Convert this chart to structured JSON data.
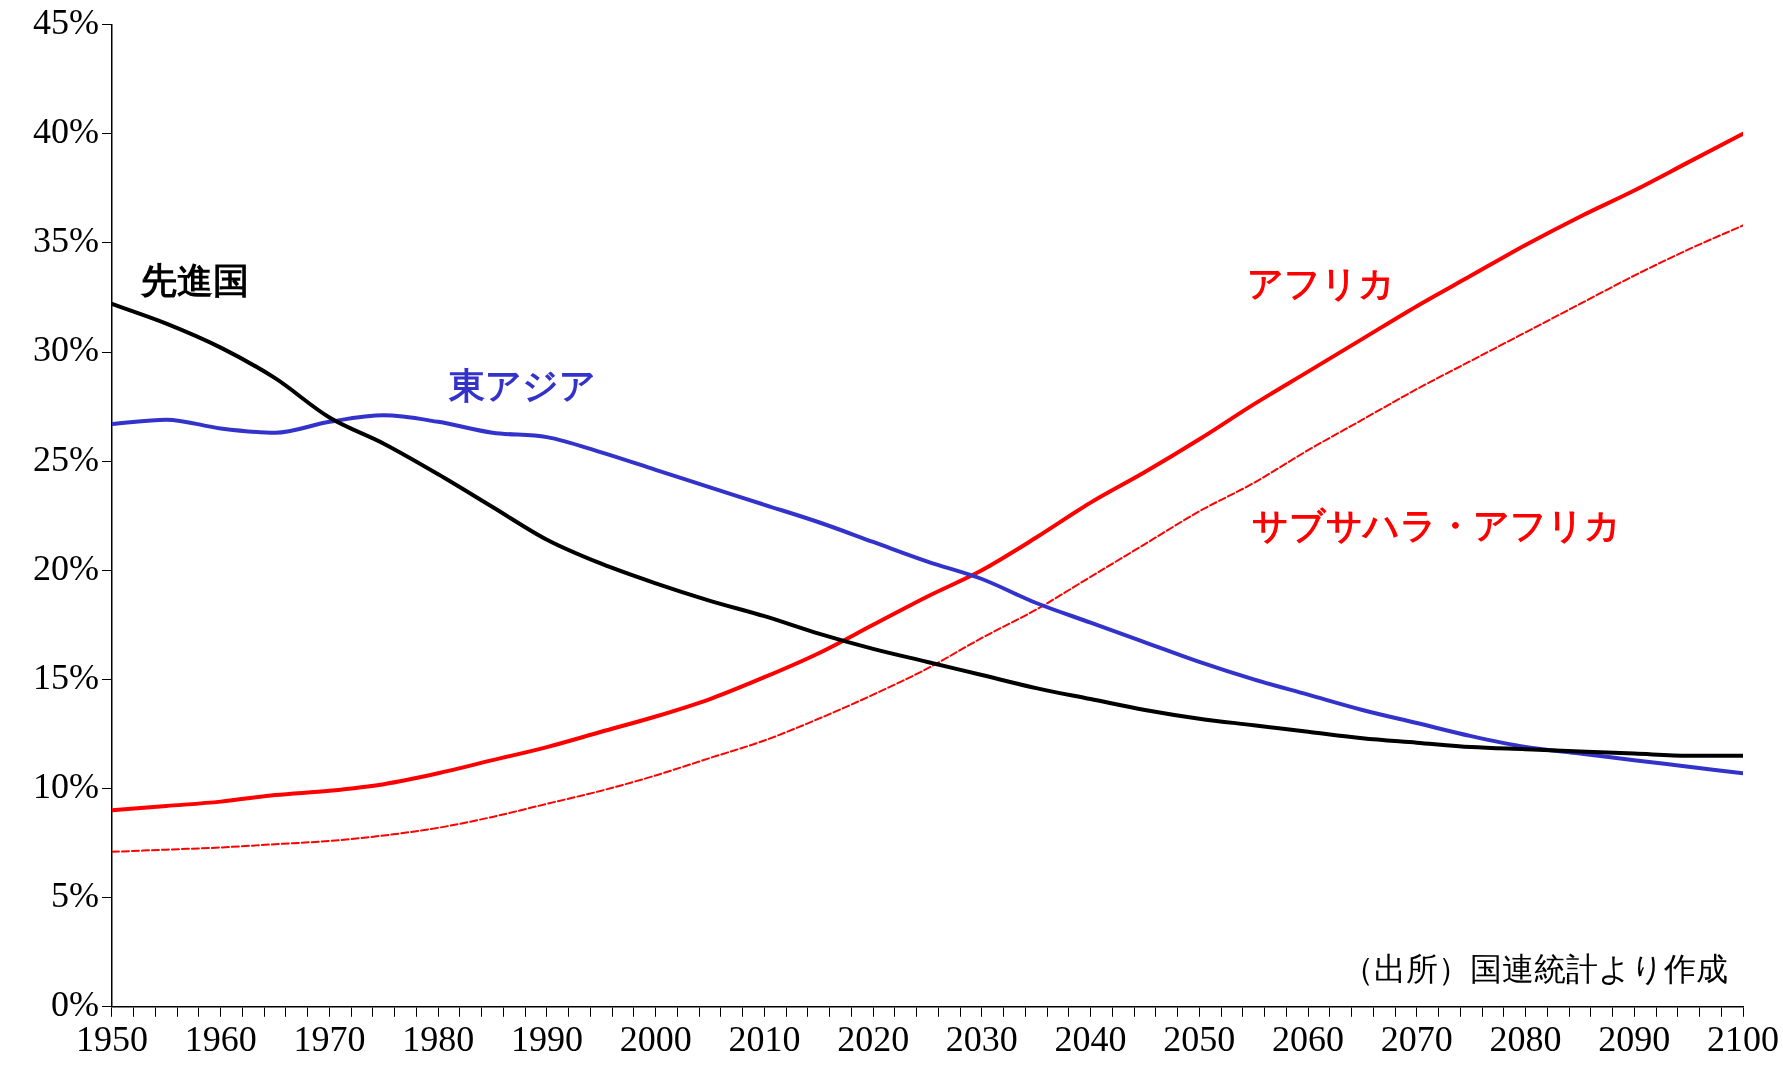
{
  "chart_data": {
    "type": "line",
    "legend": false,
    "grid": false,
    "line_style": "solid",
    "marker": "none",
    "x": [
      1950,
      1955,
      1960,
      1965,
      1970,
      1975,
      1980,
      1985,
      1990,
      1995,
      2000,
      2005,
      2010,
      2015,
      2020,
      2025,
      2030,
      2035,
      2040,
      2045,
      2050,
      2055,
      2060,
      2065,
      2070,
      2075,
      2080,
      2085,
      2090,
      2095,
      2100
    ],
    "xlim": [
      1950,
      2100
    ],
    "xticks": [
      1950,
      {
        "value": 1952,
        "label": null
      },
      {
        "value": 1954,
        "label": null
      },
      {
        "value": 1956,
        "label": null
      },
      {
        "value": 1958,
        "label": null
      },
      1960,
      {
        "value": 1962,
        "label": null
      },
      {
        "value": 1964,
        "label": null
      },
      {
        "value": 1966,
        "label": null
      },
      {
        "value": 1968,
        "label": null
      },
      1970,
      {
        "value": 1972,
        "label": null
      },
      {
        "value": 1974,
        "label": null
      },
      {
        "value": 1976,
        "label": null
      },
      {
        "value": 1978,
        "label": null
      },
      1980,
      {
        "value": 1982,
        "label": null
      },
      {
        "value": 1984,
        "label": null
      },
      {
        "value": 1986,
        "label": null
      },
      {
        "value": 1988,
        "label": null
      },
      1990,
      {
        "value": 1992,
        "label": null
      },
      {
        "value": 1994,
        "label": null
      },
      {
        "value": 1996,
        "label": null
      },
      {
        "value": 1998,
        "label": null
      },
      2000,
      {
        "value": 2002,
        "label": null
      },
      {
        "value": 2004,
        "label": null
      },
      {
        "value": 2006,
        "label": null
      },
      {
        "value": 2008,
        "label": null
      },
      2010,
      {
        "value": 2012,
        "label": null
      },
      {
        "value": 2014,
        "label": null
      },
      {
        "value": 2016,
        "label": null
      },
      {
        "value": 2018,
        "label": null
      },
      2020,
      {
        "value": 2022,
        "label": null
      },
      {
        "value": 2024,
        "label": null
      },
      {
        "value": 2026,
        "label": null
      },
      {
        "value": 2028,
        "label": null
      },
      2030,
      {
        "value": 2032,
        "label": null
      },
      {
        "value": 2034,
        "label": null
      },
      {
        "value": 2036,
        "label": null
      },
      {
        "value": 2038,
        "label": null
      },
      2040,
      {
        "value": 2042,
        "label": null
      },
      {
        "value": 2044,
        "label": null
      },
      {
        "value": 2046,
        "label": null
      },
      {
        "value": 2048,
        "label": null
      },
      2050,
      {
        "value": 2052,
        "label": null
      },
      {
        "value": 2054,
        "label": null
      },
      {
        "value": 2056,
        "label": null
      },
      {
        "value": 2058,
        "label": null
      },
      2060,
      {
        "value": 2062,
        "label": null
      },
      {
        "value": 2064,
        "label": null
      },
      {
        "value": 2066,
        "label": null
      },
      {
        "value": 2068,
        "label": null
      },
      2070,
      {
        "value": 2072,
        "label": null
      },
      {
        "value": 2074,
        "label": null
      },
      {
        "value": 2076,
        "label": null
      },
      {
        "value": 2078,
        "label": null
      },
      2080,
      {
        "value": 2082,
        "label": null
      },
      {
        "value": 2084,
        "label": null
      },
      {
        "value": 2086,
        "label": null
      },
      {
        "value": 2088,
        "label": null
      },
      2090,
      {
        "value": 2092,
        "label": null
      },
      {
        "value": 2094,
        "label": null
      },
      {
        "value": 2096,
        "label": null
      },
      {
        "value": 2098,
        "label": null
      },
      2100
    ],
    "ylim": [
      0,
      45
    ],
    "yticks": [
      {
        "value": 0,
        "label": "0%"
      },
      {
        "value": 5,
        "label": "5%"
      },
      {
        "value": 10,
        "label": "10%"
      },
      {
        "value": 15,
        "label": "15%"
      },
      {
        "value": 20,
        "label": "20%"
      },
      {
        "value": 25,
        "label": "25%"
      },
      {
        "value": 30,
        "label": "30%"
      },
      {
        "value": 35,
        "label": "35%"
      },
      {
        "value": 40,
        "label": "40%"
      },
      {
        "value": 45,
        "label": "45%"
      }
    ],
    "annotations": [
      "（出所）国連統計より作成"
    ],
    "series": [
      {
        "name": "先進国",
        "color": "#000000",
        "values": [
          32.2,
          31.3,
          30.2,
          28.8,
          27.0,
          25.8,
          24.4,
          22.9,
          21.4,
          20.3,
          19.4,
          18.6,
          17.9,
          17.1,
          16.4,
          15.8,
          15.2,
          14.6,
          14.1,
          13.6,
          13.2,
          12.9,
          12.6,
          12.3,
          12.1,
          11.9,
          11.8,
          11.7,
          11.6,
          11.5,
          11.5
        ]
      },
      {
        "name": "東アジア",
        "color": "#3333cc",
        "values": [
          26.7,
          26.9,
          26.5,
          26.3,
          26.8,
          27.1,
          26.8,
          26.3,
          26.1,
          25.4,
          24.6,
          23.8,
          23.0,
          22.2,
          21.3,
          20.4,
          19.6,
          18.5,
          17.6,
          16.7,
          15.8,
          15.0,
          14.3,
          13.6,
          13.0,
          12.4,
          11.9,
          11.6,
          11.3,
          11.0,
          10.7
        ]
      },
      {
        "name": "アフリカ",
        "color": "#ff0000",
        "values": [
          9.0,
          9.2,
          9.4,
          9.7,
          9.9,
          10.2,
          10.7,
          11.3,
          11.9,
          12.6,
          13.3,
          14.1,
          15.1,
          16.2,
          17.5,
          18.8,
          20.0,
          21.5,
          23.1,
          24.5,
          26.0,
          27.6,
          29.1,
          30.6,
          32.1,
          33.5,
          34.9,
          36.2,
          37.4,
          38.7,
          40.0
        ]
      },
      {
        "name": "サブサハラ・アフリカ",
        "color": "#ff0000",
        "line_style": "dashed",
        "values": [
          7.1,
          7.2,
          7.3,
          7.45,
          7.6,
          7.85,
          8.2,
          8.7,
          9.3,
          9.9,
          10.6,
          11.4,
          12.2,
          13.2,
          14.3,
          15.5,
          16.9,
          18.2,
          19.7,
          21.2,
          22.7,
          24.0,
          25.5,
          26.9,
          28.3,
          29.6,
          30.9,
          32.2,
          33.5,
          34.7,
          35.8
        ]
      }
    ]
  }
}
